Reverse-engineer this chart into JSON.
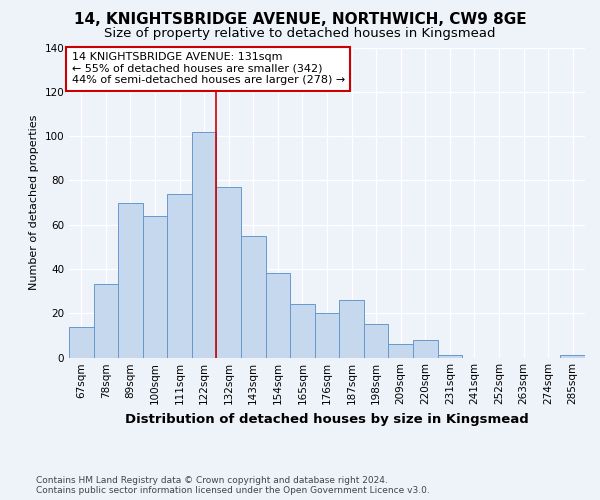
{
  "title": "14, KNIGHTSBRIDGE AVENUE, NORTHWICH, CW9 8GE",
  "subtitle": "Size of property relative to detached houses in Kingsmead",
  "xlabel": "Distribution of detached houses by size in Kingsmead",
  "ylabel": "Number of detached properties",
  "categories": [
    "67sqm",
    "78sqm",
    "89sqm",
    "100sqm",
    "111sqm",
    "122sqm",
    "132sqm",
    "143sqm",
    "154sqm",
    "165sqm",
    "176sqm",
    "187sqm",
    "198sqm",
    "209sqm",
    "220sqm",
    "231sqm",
    "241sqm",
    "252sqm",
    "263sqm",
    "274sqm",
    "285sqm"
  ],
  "values": [
    14,
    33,
    70,
    64,
    74,
    102,
    77,
    55,
    38,
    24,
    20,
    26,
    15,
    6,
    8,
    1,
    0,
    0,
    0,
    0,
    1
  ],
  "bar_color": "#c5d8ee",
  "bar_edge_color": "#6699cc",
  "vline_color": "#cc0000",
  "vline_x_index": 6,
  "annotation_line1": "14 KNIGHTSBRIDGE AVENUE: 131sqm",
  "annotation_line2": "← 55% of detached houses are smaller (342)",
  "annotation_line3": "44% of semi-detached houses are larger (278) →",
  "annotation_box_color": "#ffffff",
  "annotation_box_edge": "#cc0000",
  "ylim": [
    0,
    140
  ],
  "yticks": [
    0,
    20,
    40,
    60,
    80,
    100,
    120,
    140
  ],
  "footer": "Contains HM Land Registry data © Crown copyright and database right 2024.\nContains public sector information licensed under the Open Government Licence v3.0.",
  "background_color": "#eef2f9",
  "grid_color": "#ffffff",
  "title_fontsize": 11,
  "subtitle_fontsize": 9.5,
  "xlabel_fontsize": 9.5,
  "ylabel_fontsize": 8,
  "tick_fontsize": 7.5,
  "annotation_fontsize": 8,
  "footer_fontsize": 6.5
}
